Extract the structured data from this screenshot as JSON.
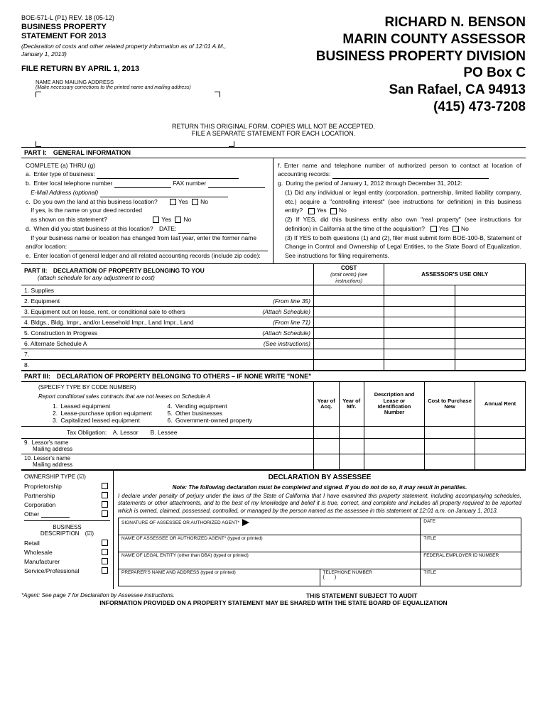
{
  "header": {
    "form_code": "BOE-571-L (P1) REV. 18 (05-12)",
    "title_line1": "BUSINESS PROPERTY",
    "title_line2": "STATEMENT FOR 2013",
    "subtitle": "(Declaration of costs and other related property information as of 12:01 A.M., January 1, 2013)",
    "deadline": "FILE RETURN BY APRIL 1, 2013",
    "addr_label": "NAME AND MAILING ADDRESS",
    "addr_note": "(Make necessary corrections to the printed name and mailing address)"
  },
  "assessor": {
    "line1": "RICHARD N. BENSON",
    "line2": "MARIN COUNTY ASSESSOR",
    "line3": "BUSINESS PROPERTY DIVISION",
    "line4": "PO Box C",
    "line5": "San Rafael, CA 94913",
    "line6": "(415) 473-7208"
  },
  "return_note": {
    "line1": "RETURN THIS ORIGINAL FORM. COPIES WILL NOT BE ACCEPTED.",
    "line2": "FILE A SEPARATE STATEMENT FOR EACH LOCATION."
  },
  "part1": {
    "header": "PART I: GENERAL INFORMATION",
    "complete": "COMPLETE (a) THRU (g)",
    "a": "a. Enter type of business:",
    "b": "b. Enter local telephone number",
    "b_fax": "FAX number",
    "b_email": "E-Mail Address (optional)",
    "c": "c. Do you own the land at this business location?",
    "c_yes": "If yes, is the name on your deed recorded",
    "c_shown": "as shown on this statement?",
    "d": "d. When did you start business at this location? DATE:",
    "d_changed": "If your business name or location has changed from last year, enter the former name and/or location:",
    "e": "e. Enter location of general ledger and all related accounting records (include zip code):",
    "f": "f. Enter name and telephone number of authorized person to contact at location of accounting records:",
    "g": "g. During the period of January 1, 2012 through December 31, 2012:",
    "g1": "(1) Did any individual or legal entity (corporation, partnership, limited liability company, etc.) acquire a \"controlling interest\" (see instructions for definition) in this business entity?",
    "g2": "(2) If YES, did this business entity also own \"real property\" (see instructions for definition) in California at the time of the acquisition?",
    "g3": "(3) If YES to both questions (1) and (2), filer must submit form BOE-100-B, Statement of Change in Control and Ownership of Legal Entities, to the State Board of Equalization. See instructions for filing requirements.",
    "yes": "Yes",
    "no": "No"
  },
  "part2": {
    "header": "PART II: DECLARATION OF PROPERTY BELONGING TO YOU",
    "sub": "(attach schedule for any adjustment to cost)",
    "col_cost": "COST",
    "col_cost_sub": "(omit cents)\n(see instructions)",
    "col_assessor": "ASSESSOR'S USE ONLY",
    "rows": [
      {
        "n": "1.",
        "label": "Supplies",
        "note": ""
      },
      {
        "n": "2.",
        "label": "Equipment",
        "note": "(From line 35)"
      },
      {
        "n": "3.",
        "label": "Equipment out on lease, rent, or conditional sale to others",
        "note": "(Attach Schedule)"
      },
      {
        "n": "4.",
        "label": "Bldgs., Bldg. Impr., and/or Leasehold Impr., Land Impr., Land",
        "note": "(From line 71)"
      },
      {
        "n": "5.",
        "label": "Construction In Progress",
        "note": "(Attach Schedule)"
      },
      {
        "n": "6.",
        "label": "Alternate Schedule A",
        "note": "(See instructions)"
      },
      {
        "n": "7.",
        "label": "",
        "note": ""
      },
      {
        "n": "8.",
        "label": "",
        "note": ""
      }
    ]
  },
  "part3": {
    "header": "PART III: DECLARATION OF PROPERTY BELONGING TO OTHERS – IF NONE WRITE \"NONE\"",
    "specify": "(SPECIFY TYPE BY CODE NUMBER)",
    "report": "Report conditional sales contracts that are not leases on Schedule A",
    "codes": {
      "c1": "1. Leased equipment",
      "c2": "2. Lease-purchase option equipment",
      "c3": "3. Capitalized leased equipment",
      "c4": "4. Vending equipment",
      "c5": "5. Other businesses",
      "c6": "6. Government-owned property"
    },
    "tax": "Tax Obligation: A. Lessor  B. Lessee",
    "cols": {
      "yoa": "Year of Acq.",
      "yom": "Year of Mfr.",
      "desc": "Description and Lease or Identification Number",
      "cost": "Cost to Purchase New",
      "rent": "Annual Rent"
    },
    "r9": "9. Lessor's name\n  Mailing address",
    "r10": "10. Lessor's name\n  Mailing address"
  },
  "decl": {
    "title": "DECLARATION BY ASSESSEE",
    "note": "Note: The following declaration must be completed and signed. If you do not do so, it may result in penalties.",
    "text": "I declare under penalty of perjury under the laws of the State of California that I have examined this property statement, including accompanying schedules, statements or other attachments, and to the best of my knowledge and belief it is true, correct, and complete and includes all property required to be reported which is owned, claimed, possessed, controlled, or managed by the person named as the assessee in this statement at 12:01 a.m. on January 1, 2013.",
    "own_hdr": "OWNERSHIP TYPE (☑)",
    "own": [
      "Proprietorship",
      "Partnership",
      "Corporation",
      "Other"
    ],
    "biz_hdr": "BUSINESS",
    "biz_desc": "DESCRIPTION (☑)",
    "biz": [
      "Retail",
      "Wholesale",
      "Manufacturer",
      "Service/Professional"
    ],
    "sig": {
      "s1": "SIGNATURE OF ASSESSEE OR AUTHORIZED AGENT*",
      "date": "DATE",
      "s2": "NAME OF ASSESSEE OR AUTHORIZED AGENT* (typed or printed)",
      "title": "TITLE",
      "s3": "NAME OF LEGAL ENTITY (other than DBA) (typed or printed)",
      "fein": "FEDERAL EMPLOYER ID NUMBER",
      "s4": "PREPARER'S NAME AND ADDRESS (typed or printed)",
      "tel": "TELEPHONE NUMBER",
      "tel_val": "(  )"
    }
  },
  "footer": {
    "agent": "*Agent: See page 7 for Declaration by Assessee instructions.",
    "audit": "THIS STATEMENT SUBJECT TO AUDIT",
    "share": "INFORMATION PROVIDED ON A PROPERTY STATEMENT MAY BE SHARED WITH THE STATE BOARD OF EQUALIZATION"
  }
}
